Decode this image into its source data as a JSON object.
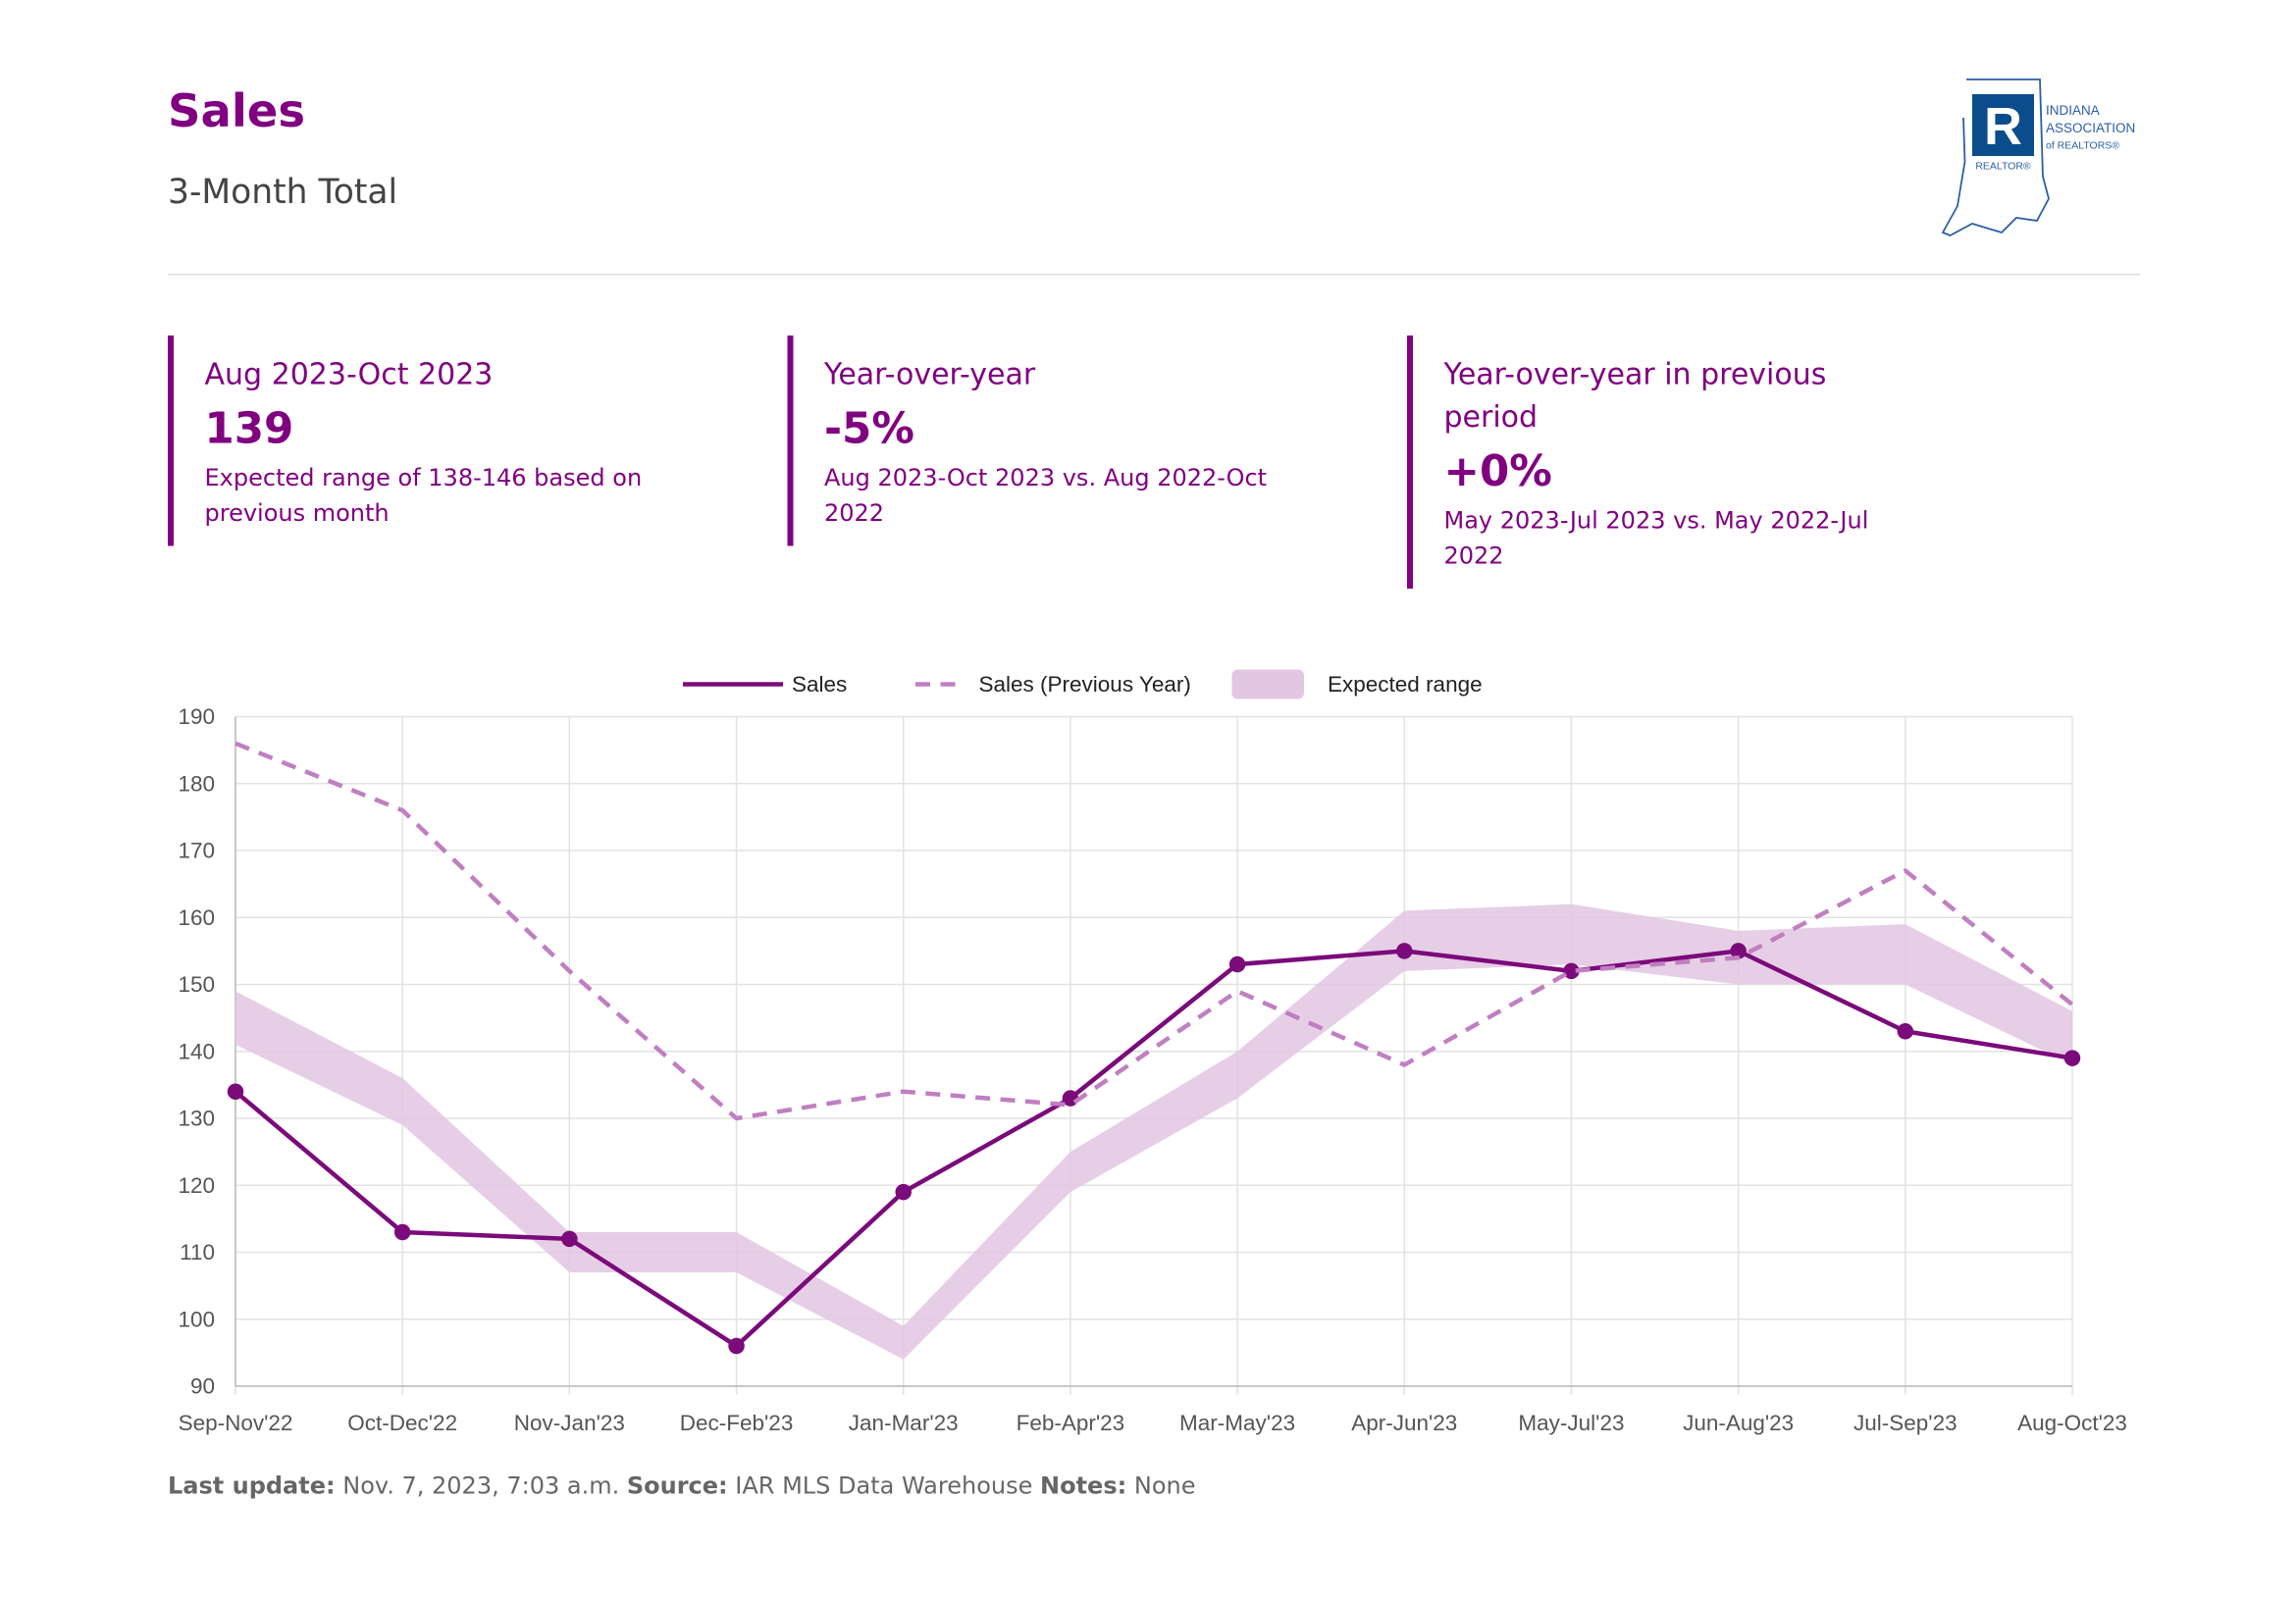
{
  "header": {
    "title": "Sales",
    "subtitle": "3-Month Total",
    "logo": {
      "line1": "INDIANA",
      "line2": "ASSOCIATION",
      "line3": "of REALTORS®",
      "badge": "REALTOR®"
    }
  },
  "stats": [
    {
      "label": "Aug 2023-Oct 2023",
      "value": "139",
      "note": "Expected range of 138-146 based on previous month"
    },
    {
      "label": "Year-over-year",
      "value": "-5%",
      "note": "Aug 2023-Oct 2023 vs. Aug 2022-Oct 2022"
    },
    {
      "label": "Year-over-year in previous period",
      "value": "+0%",
      "note": "May 2023-Jul 2023 vs. May 2022-Jul 2022"
    }
  ],
  "chart_data": {
    "type": "line",
    "categories": [
      "Sep-Nov'22",
      "Oct-Dec'22",
      "Nov-Jan'23",
      "Dec-Feb'23",
      "Jan-Mar'23",
      "Feb-Apr'23",
      "Mar-May'23",
      "Apr-Jun'23",
      "May-Jul'23",
      "Jun-Aug'23",
      "Jul-Sep'23",
      "Aug-Oct'23"
    ],
    "series": [
      {
        "name": "Sales",
        "color": "#7b0a7b",
        "values": [
          134,
          113,
          112,
          96,
          119,
          133,
          153,
          155,
          152,
          155,
          143,
          139
        ]
      },
      {
        "name": "Sales (Previous Year)",
        "color": "#c07fc0",
        "dashed": true,
        "values": [
          186,
          176,
          152,
          130,
          134,
          132,
          149,
          138,
          152,
          154,
          167,
          147
        ]
      },
      {
        "name": "Expected range",
        "color": "#e2c6e2",
        "low": [
          141,
          129,
          107,
          107,
          94,
          119,
          133,
          152,
          153,
          150,
          150,
          138
        ],
        "high": [
          149,
          136,
          113,
          113,
          99,
          125,
          140,
          161,
          162,
          158,
          159,
          146
        ]
      }
    ],
    "ylim": [
      90,
      190
    ],
    "yticks": [
      90,
      100,
      110,
      120,
      130,
      140,
      150,
      160,
      170,
      180,
      190
    ],
    "grid": true
  },
  "footer": [
    {
      "label": "Last update:",
      "text": "Nov. 7, 2023, 7:03 a.m."
    },
    {
      "label": "Source:",
      "text": "IAR MLS Data Warehouse"
    },
    {
      "label": "Notes:",
      "text": "None"
    }
  ]
}
